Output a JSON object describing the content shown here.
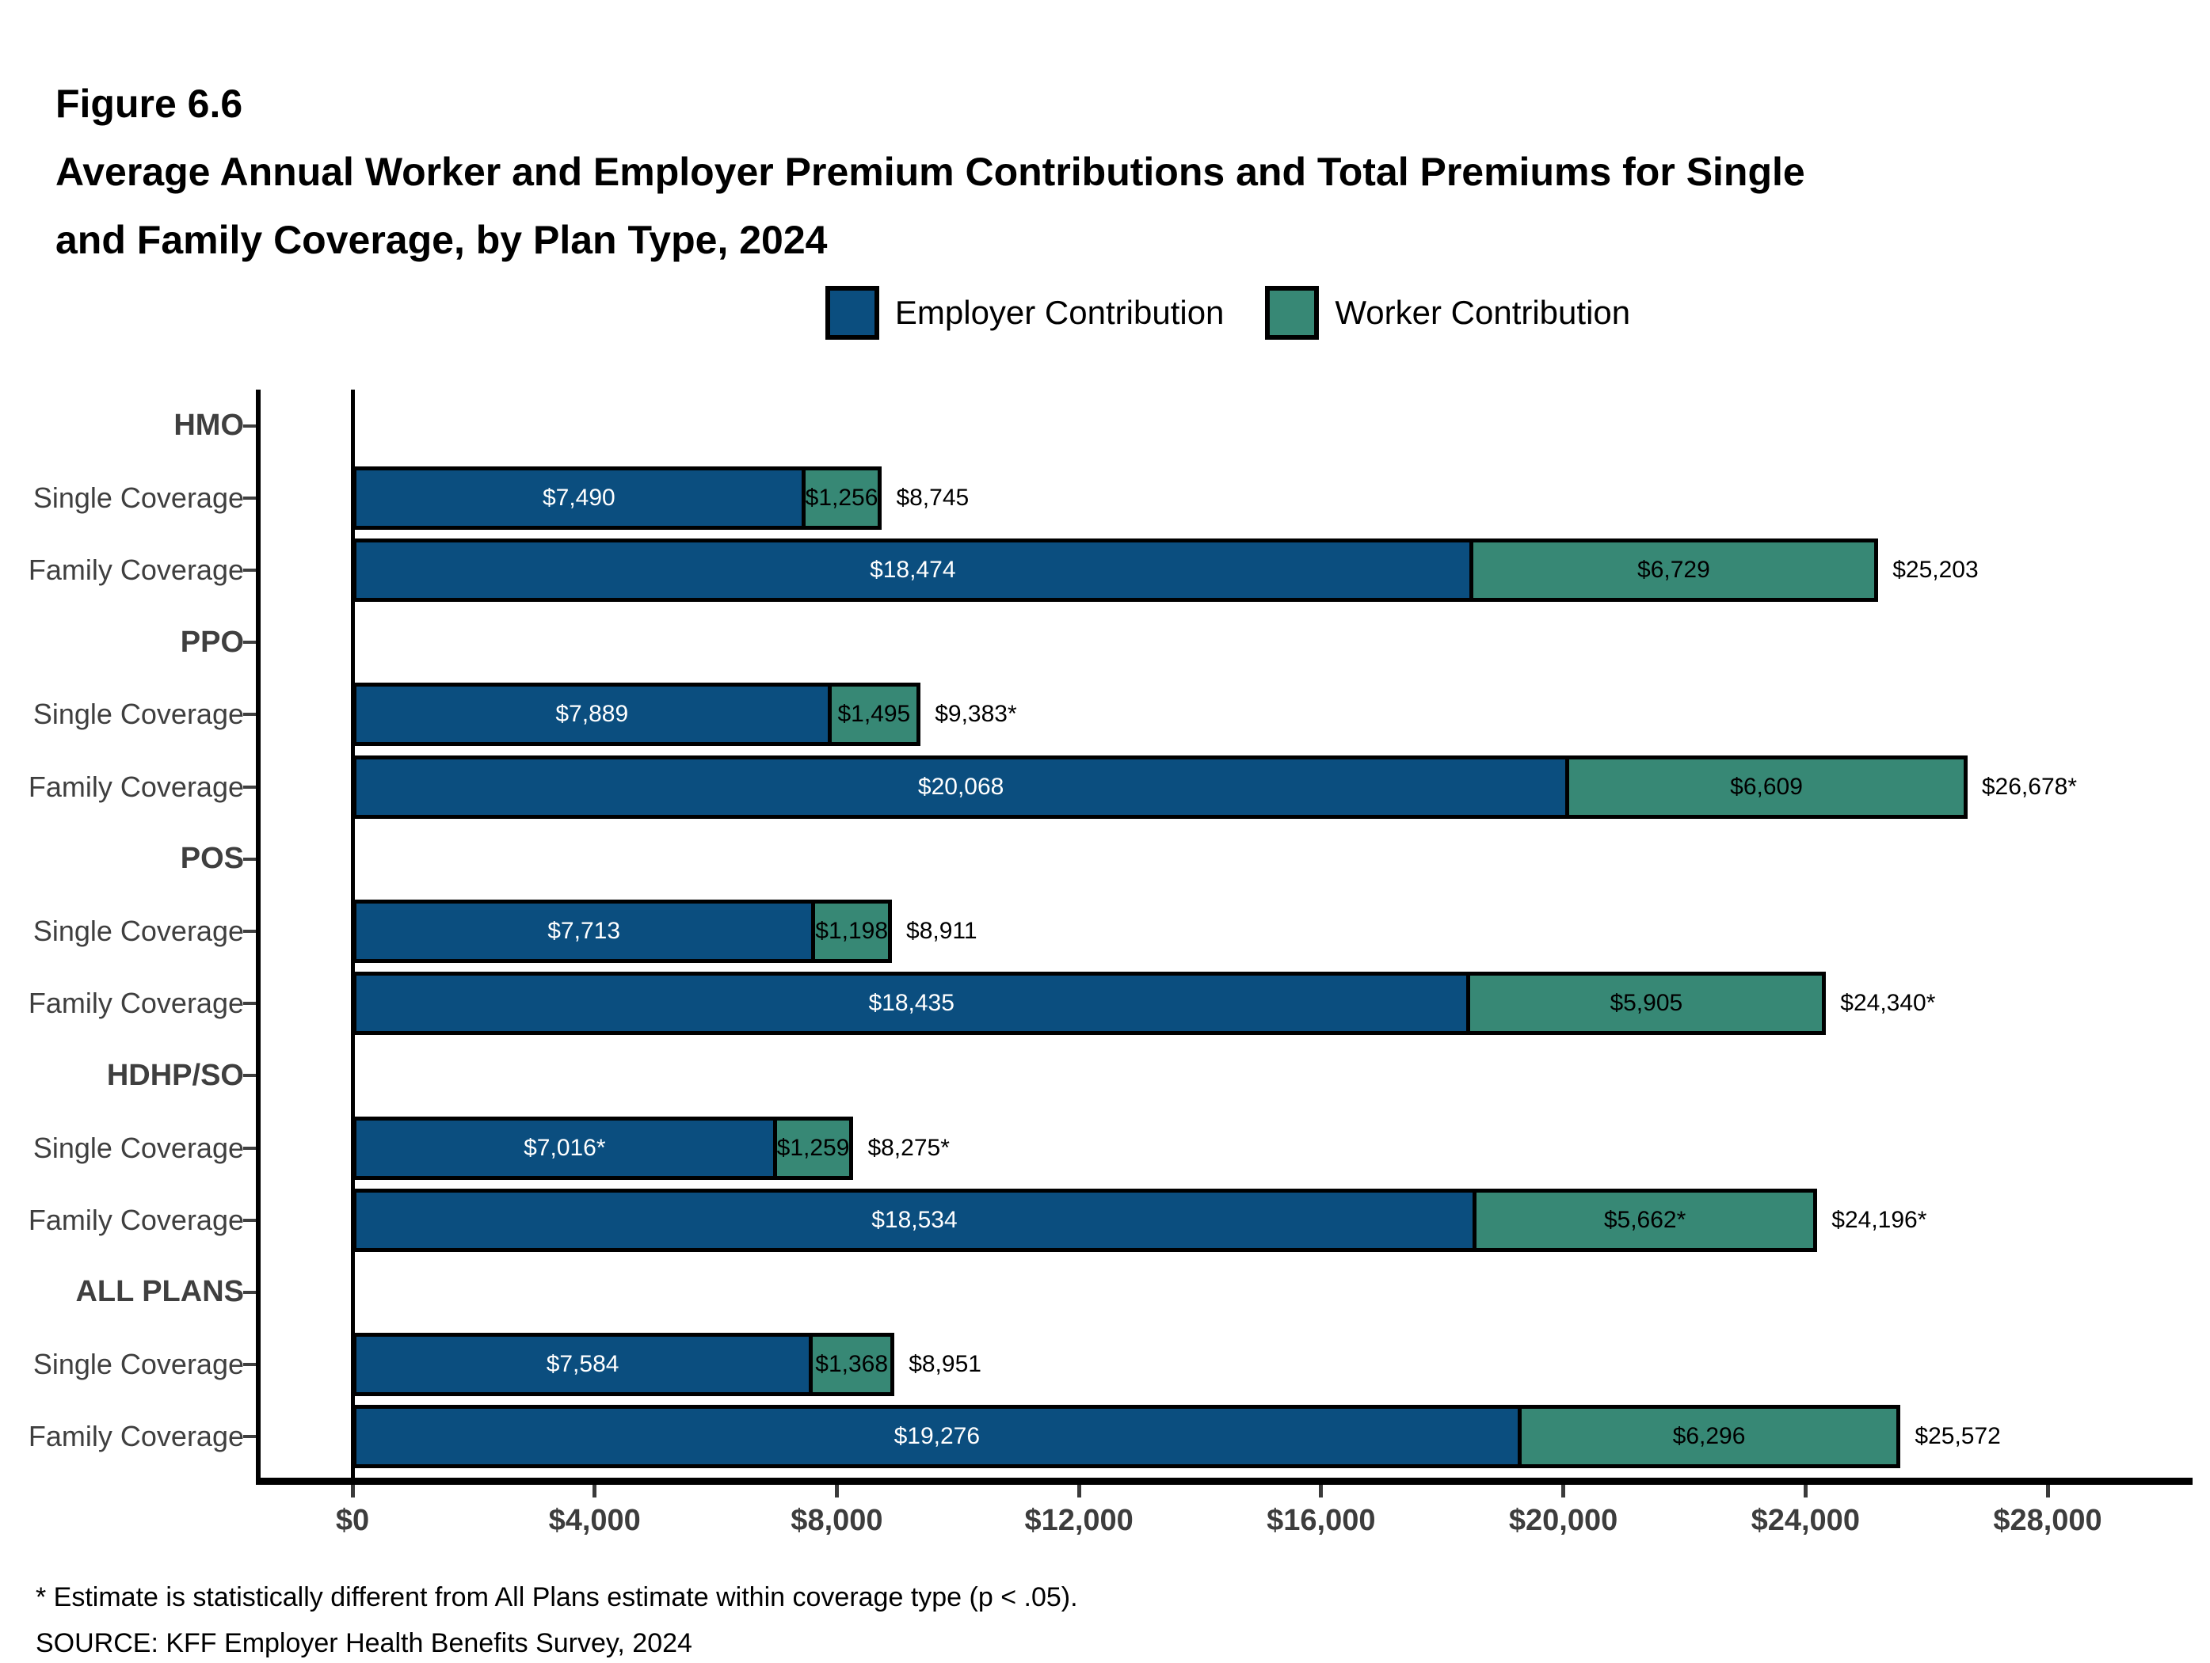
{
  "figure_number": "Figure 6.6",
  "title_line1": "Average Annual Worker and Employer Premium Contributions and Total Premiums for Single",
  "title_line2": "and Family Coverage, by Plan Type, 2024",
  "legend": [
    {
      "label": "Employer Contribution",
      "color": "#0B4E7F"
    },
    {
      "label": "Worker Contribution",
      "color": "#378875"
    }
  ],
  "footnote": "* Estimate is statistically different from All Plans estimate within coverage type (p < .05).",
  "source": "SOURCE: KFF Employer Health Benefits Survey, 2024",
  "chart_data": {
    "type": "bar",
    "orientation": "horizontal",
    "stacked": true,
    "title": "Average Annual Worker and Employer Premium Contributions and Total Premiums for Single and Family Coverage, by Plan Type, 2024",
    "xlabel": "",
    "ylabel": "",
    "xlim": [
      0,
      28000
    ],
    "grid": false,
    "legend_position": "top",
    "series_names": [
      "Employer Contribution",
      "Worker Contribution"
    ],
    "series_colors": [
      "#0B4E7F",
      "#378875"
    ],
    "series_label_text_colors": [
      "#ffffff",
      "#000000"
    ],
    "x_ticks": [
      {
        "value": 0,
        "label": "$0"
      },
      {
        "value": 4000,
        "label": "$4,000"
      },
      {
        "value": 8000,
        "label": "$8,000"
      },
      {
        "value": 12000,
        "label": "$12,000"
      },
      {
        "value": 16000,
        "label": "$16,000"
      },
      {
        "value": 20000,
        "label": "$20,000"
      },
      {
        "value": 24000,
        "label": "$24,000"
      },
      {
        "value": 28000,
        "label": "$28,000"
      }
    ],
    "groups": [
      {
        "group": "HMO",
        "rows": [
          {
            "label": "Single Coverage",
            "employer": 7490,
            "worker": 1256,
            "employer_label": "$7,490",
            "worker_label": "$1,256",
            "total_label": "$8,745"
          },
          {
            "label": "Family Coverage",
            "employer": 18474,
            "worker": 6729,
            "employer_label": "$18,474",
            "worker_label": "$6,729",
            "total_label": "$25,203"
          }
        ]
      },
      {
        "group": "PPO",
        "rows": [
          {
            "label": "Single Coverage",
            "employer": 7889,
            "worker": 1495,
            "employer_label": "$7,889",
            "worker_label": "$1,495",
            "total_label": "$9,383*"
          },
          {
            "label": "Family Coverage",
            "employer": 20068,
            "worker": 6609,
            "employer_label": "$20,068",
            "worker_label": "$6,609",
            "total_label": "$26,678*"
          }
        ]
      },
      {
        "group": "POS",
        "rows": [
          {
            "label": "Single Coverage",
            "employer": 7713,
            "worker": 1198,
            "employer_label": "$7,713",
            "worker_label": "$1,198",
            "total_label": "$8,911"
          },
          {
            "label": "Family Coverage",
            "employer": 18435,
            "worker": 5905,
            "employer_label": "$18,435",
            "worker_label": "$5,905",
            "total_label": "$24,340*"
          }
        ]
      },
      {
        "group": "HDHP/SO",
        "rows": [
          {
            "label": "Single Coverage",
            "employer": 7016,
            "worker": 1259,
            "employer_label": "$7,016*",
            "worker_label": "$1,259",
            "total_label": "$8,275*"
          },
          {
            "label": "Family Coverage",
            "employer": 18534,
            "worker": 5662,
            "employer_label": "$18,534",
            "worker_label": "$5,662*",
            "total_label": "$24,196*"
          }
        ]
      },
      {
        "group": "ALL PLANS",
        "rows": [
          {
            "label": "Single Coverage",
            "employer": 7584,
            "worker": 1368,
            "employer_label": "$7,584",
            "worker_label": "$1,368",
            "total_label": "$8,951"
          },
          {
            "label": "Family Coverage",
            "employer": 19276,
            "worker": 6296,
            "employer_label": "$19,276",
            "worker_label": "$6,296",
            "total_label": "$25,572"
          }
        ]
      }
    ]
  }
}
